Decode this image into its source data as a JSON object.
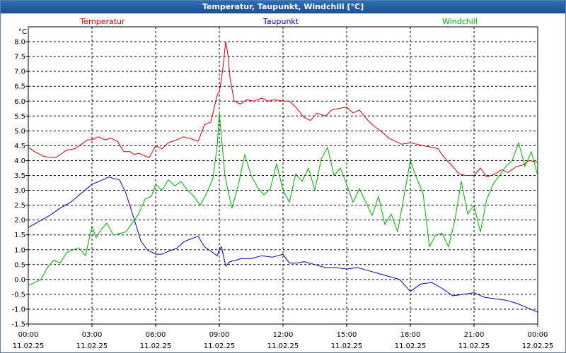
{
  "window": {
    "title": "Temperatur, Taupunkt, Windchill [°C]"
  },
  "chart_data": {
    "type": "line",
    "title": "Temperatur, Taupunkt, Windchill [°C]",
    "ylabel": "°C",
    "ylim": [
      -1.5,
      8.5
    ],
    "xlim": [
      0,
      24
    ],
    "grid": true,
    "legend_position": "top",
    "x_ticks": [
      {
        "time": "00:00",
        "date": "11.02.25",
        "x": 0
      },
      {
        "time": "03:00",
        "date": "11.02.25",
        "x": 3
      },
      {
        "time": "06:00",
        "date": "11.02.25",
        "x": 6
      },
      {
        "time": "09:00",
        "date": "11.02.25",
        "x": 9
      },
      {
        "time": "12:00",
        "date": "11.02.25",
        "x": 12
      },
      {
        "time": "15:00",
        "date": "11.02.25",
        "x": 15
      },
      {
        "time": "18:00",
        "date": "11.02.25",
        "x": 18
      },
      {
        "time": "21:00",
        "date": "11.02.25",
        "x": 21
      },
      {
        "time": "00:00",
        "date": "12.02.25",
        "x": 24
      }
    ],
    "y_ticks": [
      "8.0",
      "7.5",
      "7.0",
      "6.5",
      "6.0",
      "5.5",
      "5.0",
      "4.5",
      "4.0",
      "3.5",
      "3.0",
      "2.5",
      "2.0",
      "1.5",
      "1.0",
      "0.5",
      "0.0",
      "-0.5",
      "-1.0",
      "-1.5"
    ],
    "series": [
      {
        "name": "Temperatur",
        "color": "#cc0000",
        "x": [
          0,
          0.3,
          0.7,
          1.0,
          1.3,
          1.5,
          1.8,
          2.2,
          2.5,
          2.8,
          3.0,
          3.3,
          3.6,
          3.9,
          4.2,
          4.5,
          4.8,
          5.0,
          5.2,
          5.5,
          5.7,
          6.0,
          6.3,
          6.6,
          7.0,
          7.3,
          7.6,
          8.0,
          8.3,
          8.6,
          8.9,
          9.0,
          9.15,
          9.3,
          9.4,
          9.5,
          9.7,
          10.0,
          10.3,
          10.6,
          11.0,
          11.3,
          11.6,
          12.0,
          12.3,
          12.6,
          13.0,
          13.3,
          13.6,
          14.0,
          14.3,
          14.6,
          15.0,
          15.3,
          15.6,
          16.0,
          16.3,
          16.6,
          17.0,
          17.3,
          17.6,
          18.0,
          18.3,
          18.6,
          19.0,
          19.3,
          19.6,
          20.0,
          20.3,
          20.6,
          21.0,
          21.3,
          21.6,
          22.0,
          22.3,
          22.6,
          23.0,
          23.3,
          23.6,
          24.0
        ],
        "y": [
          4.45,
          4.3,
          4.15,
          4.1,
          4.1,
          4.2,
          4.35,
          4.4,
          4.55,
          4.7,
          4.7,
          4.8,
          4.7,
          4.75,
          4.65,
          4.3,
          4.3,
          4.2,
          4.25,
          4.15,
          4.1,
          4.5,
          4.4,
          4.6,
          4.7,
          4.8,
          4.75,
          4.65,
          5.2,
          5.3,
          6.2,
          6.3,
          7.0,
          8.0,
          7.6,
          6.8,
          6.0,
          5.9,
          6.05,
          6.0,
          6.1,
          6.0,
          6.05,
          6.0,
          6.0,
          5.8,
          5.45,
          5.35,
          5.6,
          5.5,
          5.7,
          5.75,
          5.8,
          5.6,
          5.7,
          5.35,
          5.15,
          5.0,
          4.75,
          4.65,
          4.55,
          4.6,
          4.55,
          4.5,
          4.45,
          4.4,
          4.1,
          3.8,
          3.55,
          3.5,
          3.5,
          3.75,
          3.45,
          3.55,
          3.7,
          3.6,
          3.8,
          3.85,
          4.0,
          3.95
        ]
      },
      {
        "name": "Taupunkt",
        "color": "#0000aa",
        "x": [
          0,
          0.5,
          1.0,
          1.5,
          2.0,
          2.5,
          3.0,
          3.5,
          3.8,
          4.0,
          4.3,
          4.6,
          5.0,
          5.3,
          5.6,
          6.0,
          6.3,
          6.6,
          7.0,
          7.3,
          7.6,
          8.0,
          8.3,
          8.6,
          8.9,
          9.0,
          9.1,
          9.3,
          9.5,
          9.8,
          10.0,
          10.5,
          11.0,
          11.5,
          12.0,
          12.3,
          12.6,
          13.0,
          13.5,
          14.0,
          14.5,
          15.0,
          15.5,
          16.0,
          16.5,
          17.0,
          17.5,
          18.0,
          18.5,
          19.0,
          19.5,
          20.0,
          20.5,
          21.0,
          21.5,
          22.0,
          22.5,
          23.0,
          23.5,
          24.0
        ],
        "y": [
          1.75,
          1.95,
          2.15,
          2.4,
          2.6,
          2.9,
          3.2,
          3.35,
          3.45,
          3.4,
          3.35,
          2.9,
          2.0,
          1.3,
          1.0,
          0.85,
          0.85,
          0.95,
          1.05,
          1.25,
          1.35,
          1.45,
          1.1,
          0.95,
          0.8,
          1.0,
          1.1,
          0.45,
          0.6,
          0.65,
          0.7,
          0.7,
          0.8,
          0.75,
          0.85,
          0.55,
          0.55,
          0.6,
          0.5,
          0.4,
          0.4,
          0.35,
          0.4,
          0.3,
          0.2,
          0.1,
          0.0,
          -0.4,
          -0.15,
          -0.1,
          -0.3,
          -0.55,
          -0.5,
          -0.45,
          -0.6,
          -0.65,
          -0.7,
          -0.8,
          -0.95,
          -1.1
        ]
      },
      {
        "name": "Windchill",
        "color": "#00aa00",
        "x": [
          0,
          0.3,
          0.6,
          0.9,
          1.2,
          1.5,
          1.8,
          2.1,
          2.4,
          2.7,
          3.0,
          3.2,
          3.4,
          3.7,
          4.0,
          4.3,
          4.6,
          4.9,
          5.2,
          5.5,
          5.8,
          6.0,
          6.3,
          6.6,
          6.9,
          7.2,
          7.5,
          7.8,
          8.1,
          8.4,
          8.7,
          8.9,
          9.0,
          9.1,
          9.25,
          9.4,
          9.6,
          9.9,
          10.2,
          10.5,
          10.8,
          11.1,
          11.4,
          11.7,
          12.0,
          12.3,
          12.6,
          12.9,
          13.2,
          13.5,
          13.8,
          14.1,
          14.4,
          14.7,
          15.0,
          15.3,
          15.6,
          15.9,
          16.2,
          16.5,
          16.8,
          17.1,
          17.4,
          17.7,
          18.0,
          18.3,
          18.6,
          18.9,
          19.2,
          19.5,
          19.8,
          20.1,
          20.4,
          20.7,
          21.0,
          21.3,
          21.6,
          21.9,
          22.2,
          22.5,
          22.8,
          23.1,
          23.4,
          23.7,
          24.0
        ],
        "y": [
          -0.2,
          -0.1,
          0.0,
          0.4,
          0.65,
          0.55,
          0.9,
          1.0,
          1.05,
          0.8,
          1.8,
          1.4,
          1.65,
          1.9,
          1.5,
          1.55,
          1.6,
          1.9,
          2.2,
          2.7,
          2.8,
          3.2,
          3.0,
          3.35,
          3.15,
          3.3,
          3.0,
          2.8,
          2.5,
          2.9,
          3.4,
          4.5,
          5.6,
          4.8,
          3.6,
          3.0,
          2.4,
          3.2,
          4.2,
          3.5,
          3.1,
          2.85,
          3.05,
          3.9,
          3.0,
          2.6,
          3.55,
          3.3,
          3.75,
          3.0,
          4.05,
          4.45,
          3.5,
          3.75,
          3.2,
          2.6,
          3.05,
          2.6,
          2.15,
          2.8,
          1.85,
          2.2,
          1.6,
          2.8,
          4.0,
          3.4,
          2.9,
          1.1,
          1.5,
          1.55,
          1.1,
          2.0,
          3.3,
          2.2,
          2.5,
          1.6,
          2.7,
          3.2,
          3.5,
          3.8,
          4.0,
          4.6,
          3.8,
          4.3,
          3.5
        ]
      }
    ]
  }
}
